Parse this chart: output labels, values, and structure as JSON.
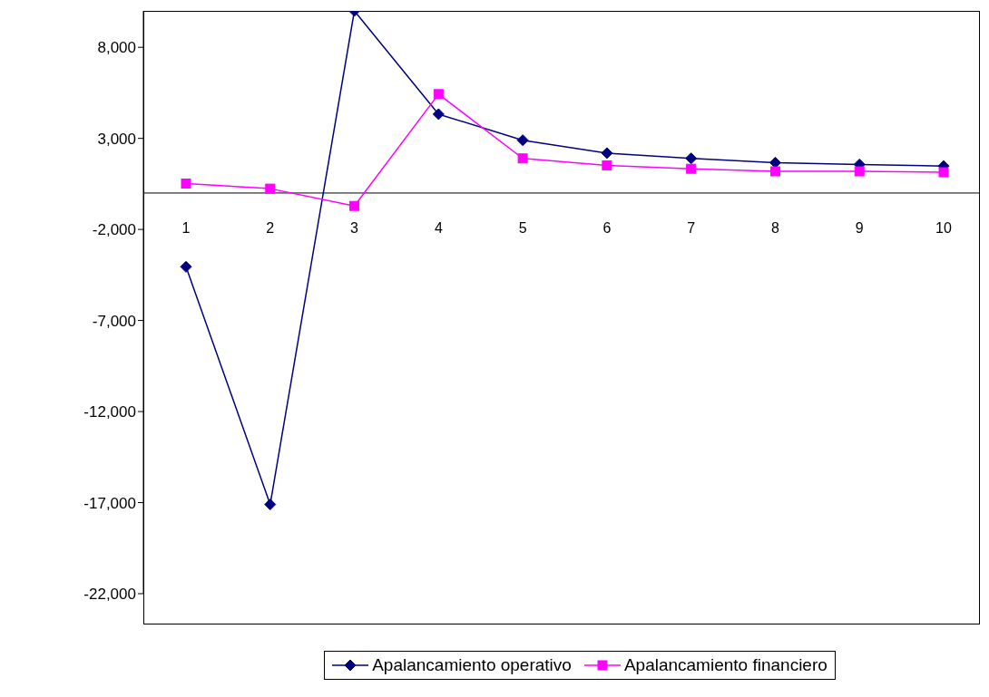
{
  "chart_data": {
    "type": "line",
    "categories": [
      "1",
      "2",
      "3",
      "4",
      "5",
      "6",
      "7",
      "8",
      "9",
      "10"
    ],
    "series": [
      {
        "name": "Apalancamiento operativo",
        "color": "#000080",
        "marker": "diamond",
        "values": [
          -4050,
          -17100,
          10000,
          4330,
          2900,
          2190,
          1900,
          1670,
          1570,
          1480
        ]
      },
      {
        "name": "Apalancamiento financiero",
        "color": "#ff00ff",
        "marker": "square",
        "values": [
          520,
          240,
          -710,
          5430,
          1900,
          1520,
          1330,
          1190,
          1190,
          1140
        ]
      }
    ],
    "ylim": [
      -22000,
      10000
    ],
    "yticks": [
      {
        "value": -22000,
        "label": "-22,000"
      },
      {
        "value": -17000,
        "label": "-17,000"
      },
      {
        "value": -12000,
        "label": "-12,000"
      },
      {
        "value": -7000,
        "label": "-7,000"
      },
      {
        "value": -2000,
        "label": "-2,000"
      },
      {
        "value": 3000,
        "label": "3,000"
      },
      {
        "value": 8000,
        "label": "8,000"
      }
    ],
    "grid": false,
    "legend": "bottom"
  }
}
